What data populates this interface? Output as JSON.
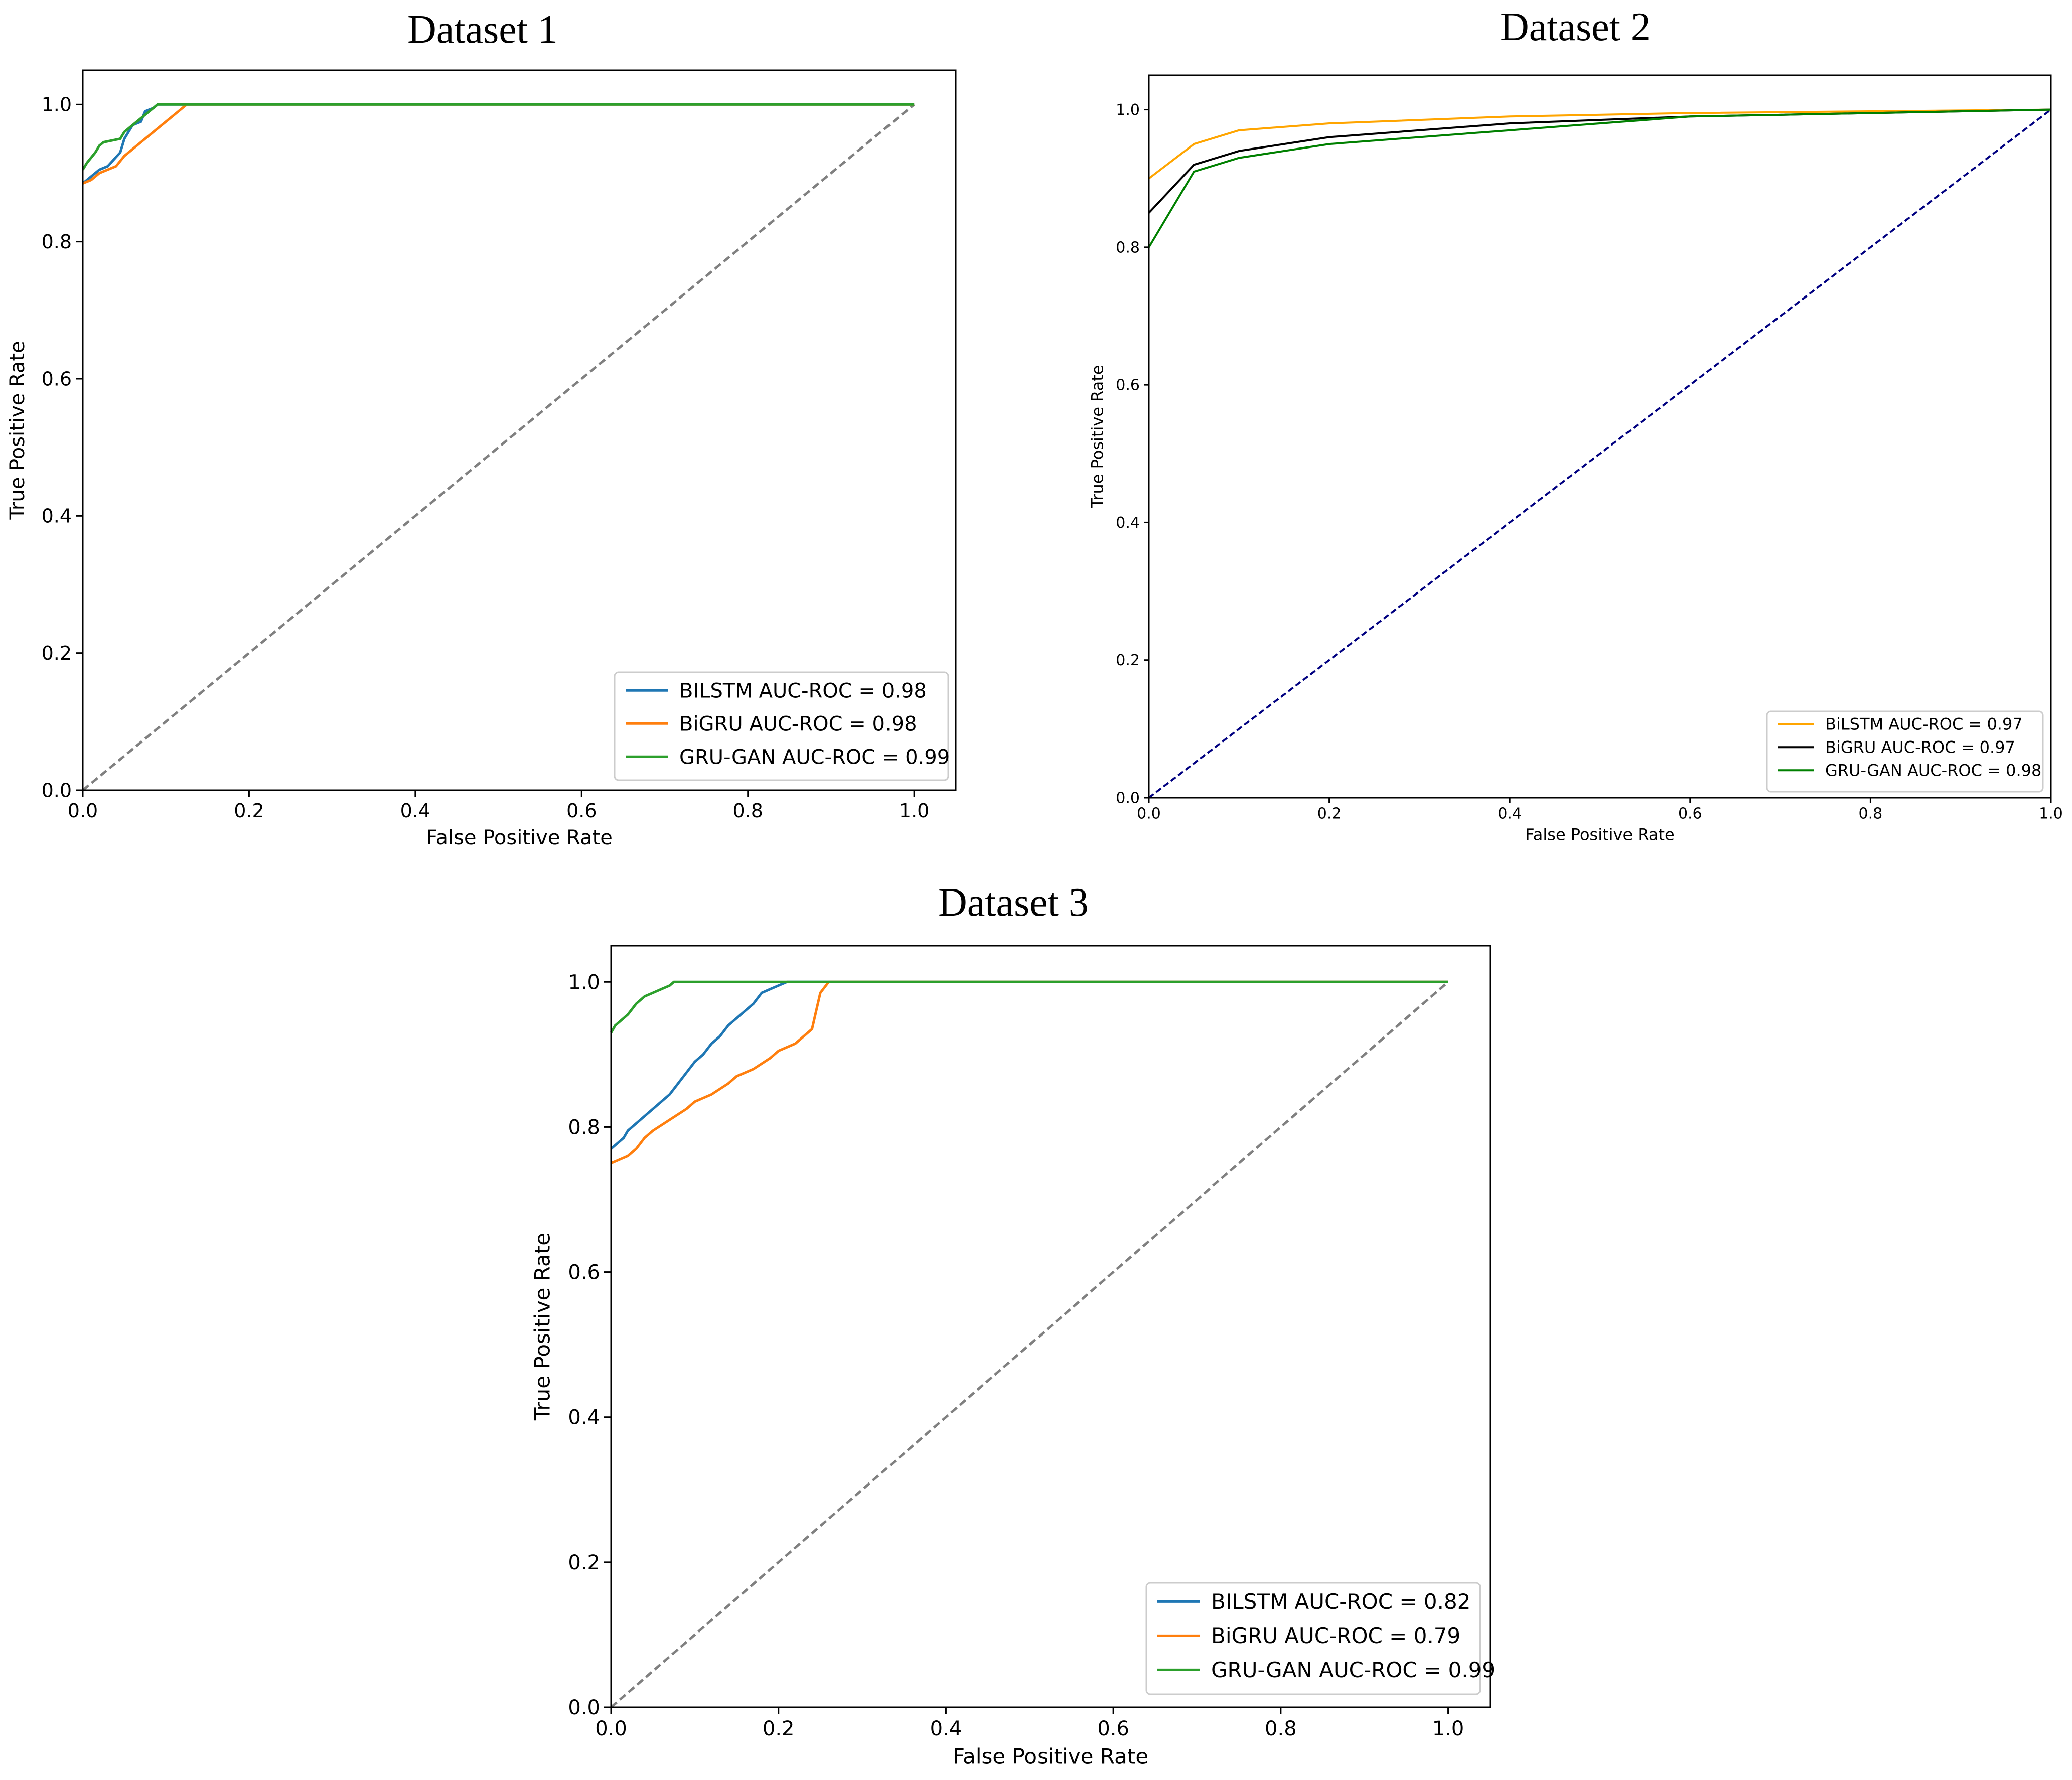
{
  "chart_data": [
    {
      "type": "line",
      "title": "Dataset 1",
      "xlabel": "False Positive Rate",
      "ylabel": "True Positive Rate",
      "xlim": [
        0,
        1.05
      ],
      "ylim": [
        0,
        1.05
      ],
      "xticks": [
        "0.0",
        "0.2",
        "0.4",
        "0.6",
        "0.8",
        "1.0"
      ],
      "yticks": [
        "0.0",
        "0.2",
        "0.4",
        "0.6",
        "0.8",
        "1.0"
      ],
      "legend_position": "lower-right",
      "diagonal": {
        "style": "dashed",
        "color": "#808080"
      },
      "series": [
        {
          "name": "BILSTM AUC-ROC = 0.98",
          "color": "#1f77b4",
          "x": [
            0,
            0.01,
            0.02,
            0.03,
            0.045,
            0.05,
            0.06,
            0.07,
            0.075,
            0.085,
            0.09,
            1.0
          ],
          "y": [
            0.885,
            0.895,
            0.905,
            0.91,
            0.93,
            0.95,
            0.97,
            0.975,
            0.99,
            0.995,
            1.0,
            1.0
          ]
        },
        {
          "name": "BiGRU AUC-ROC = 0.98",
          "color": "#ff7f0e",
          "x": [
            0,
            0.01,
            0.02,
            0.04,
            0.05,
            0.06,
            0.07,
            0.08,
            0.095,
            0.105,
            0.115,
            0.125,
            1.0
          ],
          "y": [
            0.885,
            0.89,
            0.9,
            0.91,
            0.925,
            0.935,
            0.945,
            0.955,
            0.97,
            0.98,
            0.99,
            1.0,
            1.0
          ]
        },
        {
          "name": "GRU-GAN AUC-ROC = 0.99",
          "color": "#2ca02c",
          "x": [
            0,
            0.005,
            0.015,
            0.02,
            0.025,
            0.045,
            0.05,
            0.06,
            0.07,
            0.08,
            0.09,
            1.0
          ],
          "y": [
            0.905,
            0.915,
            0.93,
            0.94,
            0.945,
            0.95,
            0.96,
            0.97,
            0.98,
            0.99,
            1.0,
            1.0
          ]
        }
      ]
    },
    {
      "type": "line",
      "title": "Dataset 2",
      "xlabel": "False Positive Rate",
      "ylabel": "True Positive Rate",
      "xlim": [
        0,
        1.0
      ],
      "ylim": [
        0,
        1.05
      ],
      "xticks": [
        "0.0",
        "0.2",
        "0.4",
        "0.6",
        "0.8",
        "1.0"
      ],
      "yticks": [
        "0.0",
        "0.2",
        "0.4",
        "0.6",
        "0.8",
        "1.0"
      ],
      "legend_position": "lower-right",
      "diagonal": {
        "style": "dashed",
        "color": "#000080"
      },
      "series": [
        {
          "name": "BiLSTM AUC-ROC = 0.97",
          "color": "#ffa500",
          "x": [
            0,
            0.05,
            0.1,
            0.2,
            0.4,
            0.6,
            1.0
          ],
          "y": [
            0.9,
            0.95,
            0.97,
            0.98,
            0.99,
            0.995,
            1.0
          ]
        },
        {
          "name": "BiGRU AUC-ROC = 0.97",
          "color": "#000000",
          "x": [
            0,
            0.05,
            0.1,
            0.2,
            0.4,
            0.6,
            1.0
          ],
          "y": [
            0.85,
            0.92,
            0.94,
            0.96,
            0.98,
            0.99,
            1.0
          ]
        },
        {
          "name": "GRU-GAN AUC-ROC = 0.98",
          "color": "#008000",
          "x": [
            0,
            0.05,
            0.1,
            0.2,
            0.4,
            0.6,
            1.0
          ],
          "y": [
            0.8,
            0.91,
            0.93,
            0.95,
            0.97,
            0.99,
            1.0
          ]
        }
      ]
    },
    {
      "type": "line",
      "title": "Dataset 3",
      "xlabel": "False Positive Rate",
      "ylabel": "True Positive Rate",
      "xlim": [
        0,
        1.05
      ],
      "ylim": [
        0,
        1.05
      ],
      "xticks": [
        "0.0",
        "0.2",
        "0.4",
        "0.6",
        "0.8",
        "1.0"
      ],
      "yticks": [
        "0.0",
        "0.2",
        "0.4",
        "0.6",
        "0.8",
        "1.0"
      ],
      "legend_position": "lower-right",
      "diagonal": {
        "style": "dashed",
        "color": "#808080"
      },
      "series": [
        {
          "name": "BILSTM AUC-ROC = 0.82",
          "color": "#1f77b4",
          "x": [
            0,
            0.005,
            0.015,
            0.02,
            0.03,
            0.04,
            0.05,
            0.06,
            0.07,
            0.08,
            0.09,
            0.1,
            0.11,
            0.12,
            0.13,
            0.14,
            0.15,
            0.16,
            0.17,
            0.18,
            0.19,
            0.2,
            0.21,
            1.0
          ],
          "y": [
            0.77,
            0.775,
            0.785,
            0.795,
            0.805,
            0.815,
            0.825,
            0.835,
            0.845,
            0.86,
            0.875,
            0.89,
            0.9,
            0.915,
            0.925,
            0.94,
            0.95,
            0.96,
            0.97,
            0.985,
            0.99,
            0.995,
            1.0,
            1.0
          ]
        },
        {
          "name": "BiGRU AUC-ROC = 0.79",
          "color": "#ff7f0e",
          "x": [
            0,
            0.01,
            0.02,
            0.03,
            0.04,
            0.05,
            0.07,
            0.09,
            0.1,
            0.12,
            0.14,
            0.15,
            0.17,
            0.19,
            0.2,
            0.22,
            0.24,
            0.245,
            0.25,
            0.26,
            1.0
          ],
          "y": [
            0.75,
            0.755,
            0.76,
            0.77,
            0.785,
            0.795,
            0.81,
            0.825,
            0.835,
            0.845,
            0.86,
            0.87,
            0.88,
            0.895,
            0.905,
            0.915,
            0.935,
            0.96,
            0.985,
            1.0,
            1.0
          ]
        },
        {
          "name": "GRU-GAN AUC-ROC = 0.99",
          "color": "#2ca02c",
          "x": [
            0,
            0.005,
            0.01,
            0.015,
            0.02,
            0.03,
            0.04,
            0.05,
            0.06,
            0.07,
            0.075,
            1.0
          ],
          "y": [
            0.93,
            0.94,
            0.945,
            0.95,
            0.955,
            0.97,
            0.98,
            0.985,
            0.99,
            0.995,
            1.0,
            1.0
          ]
        }
      ]
    }
  ]
}
